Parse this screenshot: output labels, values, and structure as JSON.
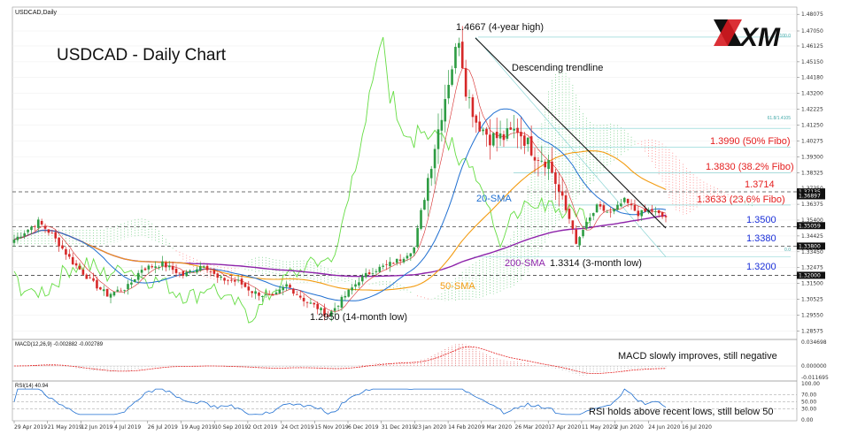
{
  "header": {
    "symbol_label": "USDCAD,Daily",
    "title": "USDCAD - Daily Chart",
    "logo_text": "XM"
  },
  "macd_header": "MACD(12,26,9) -0.002882 -0.002789",
  "rsi_header": "RSI(14) 40.94",
  "colors": {
    "bull": "#2e9c43",
    "bear": "#d62828",
    "sma20": "#1f6fd1",
    "sma50": "#f39c12",
    "sma200": "#8e24aa",
    "ichimoku_cloud_bull": "#55c46a",
    "ichimoku_cloud_bear": "#ff6b6b",
    "lime_line": "#66dd44",
    "red_text": "#e41e1e",
    "blue_text": "#1a2fd8",
    "purple_text": "#8e24aa"
  },
  "annotations": {
    "top_high": "1.4667 (4-year high)",
    "trendline": "Descending trendline",
    "fibo50": "1.3990 (50% Fibo)",
    "fibo382": "1.3830 (38.2% Fibo)",
    "level3714": "1.3714",
    "fibo236": "1.3633 (23.6% Fibo)",
    "level3500": "1.3500",
    "level3380": "1.3380",
    "level3200": "1.3200",
    "sma20": "20-SMA",
    "sma50": "50-SMA",
    "sma200": "200-SMA",
    "low3314": "1.3314 (3-month low)",
    "low2950": "1.2950 (14-month low)",
    "macd_note": "MACD slowly improves, still negative",
    "rsi_note": "RSI holds above recent lows, still below 50",
    "fib_100": "100.0",
    "fib_618": "61.8/1.4105",
    "fib_00": "0.0"
  },
  "chart_data": {
    "type": "candlestick",
    "title": "USDCAD - Daily Chart",
    "x_tick_labels": [
      "29 Apr 2019",
      "21 May 2019",
      "12 Jun 2019",
      "4 Jul 2019",
      "26 Jul 2019",
      "19 Aug 2019",
      "10 Sep 2019",
      "2 Oct 2019",
      "24 Oct 2019",
      "15 Nov 2019",
      "6 Dec 2019",
      "31 Dec 2019",
      "23 Jan 2020",
      "14 Feb 2020",
      "9 Mar 2020",
      "26 Mar 2020",
      "17 Apr 2020",
      "11 May 2020",
      "2 Jun 2020",
      "24 Jun 2020",
      "16 Jul 2020"
    ],
    "y_tick_labels": [
      "1.48075",
      "1.47050",
      "1.46125",
      "1.45150",
      "1.44180",
      "1.43200",
      "1.42225",
      "1.41250",
      "1.40275",
      "1.39300",
      "1.38325",
      "1.37350",
      "1.36375",
      "1.35400",
      "1.34425",
      "1.33450",
      "1.32475",
      "1.31500",
      "1.30525",
      "1.29550",
      "1.28575"
    ],
    "ylim": [
      1.2805,
      1.4852
    ],
    "price_labels": [
      "1.37135",
      "1.36897",
      "1.35059",
      "1.33800",
      "1.32000"
    ],
    "macd_y_labels": [
      "0.034698",
      "0.000000",
      "-0.011695"
    ],
    "rsi_y_labels": [
      "100.00",
      "70.00",
      "50.00",
      "30.00",
      "0.00"
    ],
    "rsi_levels": [
      70,
      50,
      30
    ],
    "close_anchors": [
      [
        0,
        1.342
      ],
      [
        7,
        1.353
      ],
      [
        11,
        1.345
      ],
      [
        17,
        1.328
      ],
      [
        23,
        1.315
      ],
      [
        27,
        1.308
      ],
      [
        33,
        1.313
      ],
      [
        37,
        1.324
      ],
      [
        43,
        1.327
      ],
      [
        49,
        1.32
      ],
      [
        55,
        1.327
      ],
      [
        59,
        1.318
      ],
      [
        65,
        1.316
      ],
      [
        69,
        1.31
      ],
      [
        75,
        1.306
      ],
      [
        79,
        1.314
      ],
      [
        84,
        1.305
      ],
      [
        88,
        1.3
      ],
      [
        91,
        1.295
      ],
      [
        95,
        1.305
      ],
      [
        100,
        1.317
      ],
      [
        104,
        1.323
      ],
      [
        108,
        1.326
      ],
      [
        112,
        1.33
      ],
      [
        116,
        1.337
      ],
      [
        119,
        1.37
      ],
      [
        122,
        1.4
      ],
      [
        126,
        1.44
      ],
      [
        129,
        1.4667
      ],
      [
        131,
        1.435
      ],
      [
        134,
        1.415
      ],
      [
        138,
        1.405
      ],
      [
        142,
        1.405
      ],
      [
        146,
        1.41
      ],
      [
        151,
        1.395
      ],
      [
        155,
        1.39
      ],
      [
        159,
        1.365
      ],
      [
        162,
        1.35
      ],
      [
        163,
        1.338
      ],
      [
        165,
        1.348
      ],
      [
        169,
        1.362
      ],
      [
        173,
        1.358
      ],
      [
        177,
        1.366
      ],
      [
        181,
        1.358
      ],
      [
        185,
        1.36
      ],
      [
        188,
        1.356
      ]
    ]
  }
}
